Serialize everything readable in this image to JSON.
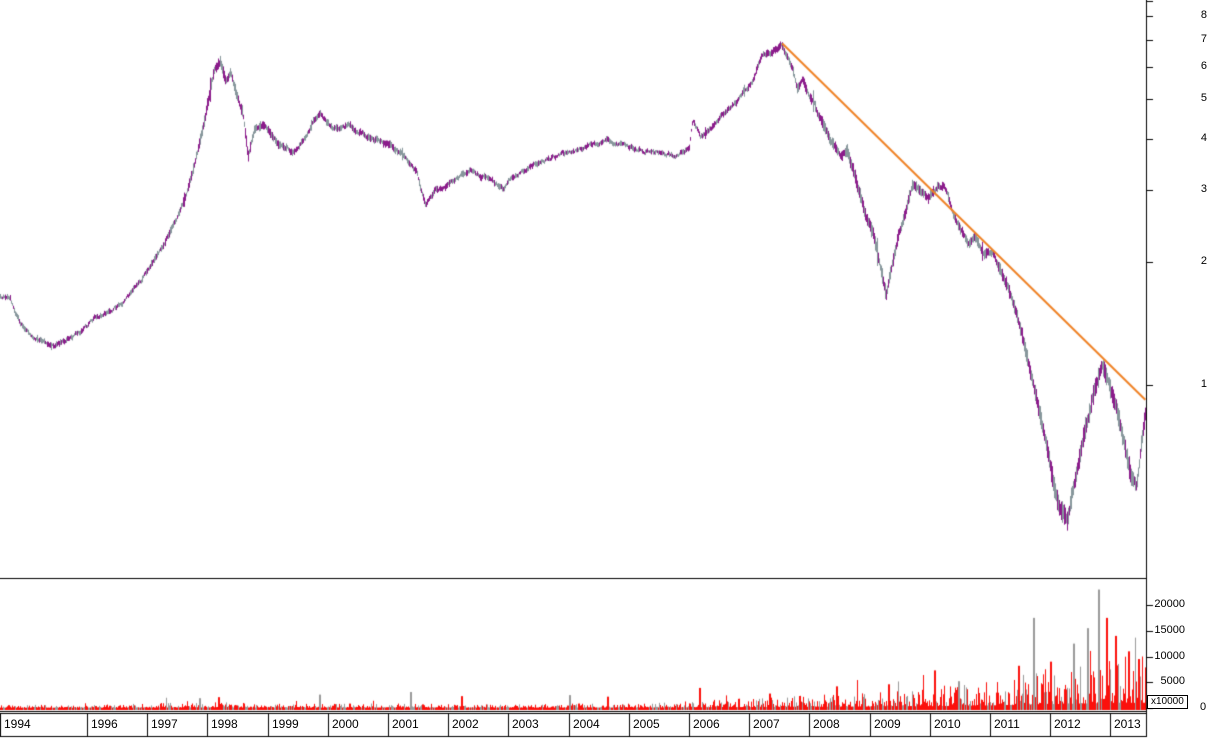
{
  "app": {
    "type": "stock-charting-window"
  },
  "colors": {
    "background": "#ffffff",
    "axis": "#000000",
    "price_gray": "#87979c",
    "price_purple": "#8b1b8b",
    "trendline_orange": "#f08327",
    "volume_red": "#fb100c",
    "volume_gray": "#9a9a9a"
  },
  "price_axis": {
    "ticks": [
      8,
      7,
      6,
      5,
      4,
      3,
      2,
      1
    ],
    "scale": "log"
  },
  "volume_axis": {
    "ticks": [
      20000,
      15000,
      10000,
      5000,
      0
    ],
    "scale_label": "x10000"
  },
  "time_axis": {
    "years": [
      1994,
      1996,
      1997,
      1998,
      1999,
      2000,
      2001,
      2002,
      2003,
      2004,
      2005,
      2006,
      2007,
      2008,
      2009,
      2010,
      2011,
      2012,
      2013
    ]
  },
  "chart_data": [
    {
      "type": "line",
      "name": "price",
      "y_scale": "log",
      "x_range": [
        1994.55,
        2013.58
      ],
      "ylim": [
        0.35,
        8.8
      ],
      "y_ticks": [
        8,
        7,
        6,
        5,
        4,
        3,
        2,
        1
      ],
      "grid": false,
      "legend": "none",
      "points": [
        [
          1994.56,
          1.66
        ],
        [
          1994.72,
          1.62
        ],
        [
          1994.8,
          1.5
        ],
        [
          1994.95,
          1.37
        ],
        [
          1995.1,
          1.3
        ],
        [
          1995.39,
          1.25
        ],
        [
          1995.64,
          1.28
        ],
        [
          1995.89,
          1.34
        ],
        [
          1996.12,
          1.45
        ],
        [
          1996.38,
          1.52
        ],
        [
          1996.63,
          1.62
        ],
        [
          1996.88,
          1.78
        ],
        [
          1997.13,
          2.05
        ],
        [
          1997.3,
          2.28
        ],
        [
          1997.46,
          2.52
        ],
        [
          1997.6,
          2.83
        ],
        [
          1997.74,
          3.3
        ],
        [
          1997.88,
          4.0
        ],
        [
          1997.98,
          4.75
        ],
        [
          1998.12,
          5.95
        ],
        [
          1998.21,
          6.2
        ],
        [
          1998.3,
          5.45
        ],
        [
          1998.38,
          5.75
        ],
        [
          1998.48,
          5.1
        ],
        [
          1998.58,
          4.65
        ],
        [
          1998.67,
          3.6
        ],
        [
          1998.77,
          4.2
        ],
        [
          1998.91,
          4.33
        ],
        [
          1999.07,
          4.1
        ],
        [
          1999.26,
          3.85
        ],
        [
          1999.45,
          3.7
        ],
        [
          1999.6,
          3.95
        ],
        [
          1999.75,
          4.35
        ],
        [
          1999.87,
          4.5
        ],
        [
          2000.08,
          4.2
        ],
        [
          2000.33,
          4.3
        ],
        [
          2000.57,
          4.15
        ],
        [
          2000.83,
          3.98
        ],
        [
          2001.06,
          3.82
        ],
        [
          2001.3,
          3.62
        ],
        [
          2001.48,
          3.3
        ],
        [
          2001.62,
          2.7
        ],
        [
          2001.77,
          2.95
        ],
        [
          2001.93,
          3.08
        ],
        [
          2002.16,
          3.2
        ],
        [
          2002.39,
          3.35
        ],
        [
          2002.66,
          3.22
        ],
        [
          2002.92,
          3.03
        ],
        [
          2003.19,
          3.3
        ],
        [
          2003.45,
          3.5
        ],
        [
          2003.72,
          3.6
        ],
        [
          2004.02,
          3.72
        ],
        [
          2004.32,
          3.86
        ],
        [
          2004.62,
          3.94
        ],
        [
          2004.92,
          3.82
        ],
        [
          2005.21,
          3.76
        ],
        [
          2005.51,
          3.7
        ],
        [
          2005.81,
          3.66
        ],
        [
          2006.0,
          3.82
        ],
        [
          2006.06,
          4.45
        ],
        [
          2006.18,
          4.02
        ],
        [
          2006.31,
          4.16
        ],
        [
          2006.47,
          4.45
        ],
        [
          2006.67,
          4.78
        ],
        [
          2006.87,
          5.1
        ],
        [
          2007.04,
          5.55
        ],
        [
          2007.2,
          6.3
        ],
        [
          2007.37,
          6.55
        ],
        [
          2007.52,
          6.82
        ],
        [
          2007.62,
          6.45
        ],
        [
          2007.72,
          6.0
        ],
        [
          2007.8,
          5.3
        ],
        [
          2007.87,
          5.65
        ],
        [
          2007.97,
          5.15
        ],
        [
          2008.07,
          4.9
        ],
        [
          2008.2,
          4.42
        ],
        [
          2008.36,
          3.98
        ],
        [
          2008.53,
          3.65
        ],
        [
          2008.62,
          3.8
        ],
        [
          2008.8,
          3.05
        ],
        [
          2008.93,
          2.6
        ],
        [
          2009.06,
          2.35
        ],
        [
          2009.16,
          2.0
        ],
        [
          2009.27,
          1.68
        ],
        [
          2009.37,
          2.0
        ],
        [
          2009.48,
          2.35
        ],
        [
          2009.59,
          2.65
        ],
        [
          2009.71,
          3.1
        ],
        [
          2009.84,
          2.96
        ],
        [
          2009.97,
          2.86
        ],
        [
          2010.11,
          3.02
        ],
        [
          2010.24,
          3.08
        ],
        [
          2010.37,
          2.7
        ],
        [
          2010.5,
          2.42
        ],
        [
          2010.64,
          2.2
        ],
        [
          2010.77,
          2.28
        ],
        [
          2010.9,
          2.06
        ],
        [
          2011.03,
          2.1
        ],
        [
          2011.17,
          1.9
        ],
        [
          2011.3,
          1.72
        ],
        [
          2011.43,
          1.5
        ],
        [
          2011.57,
          1.25
        ],
        [
          2011.7,
          1.02
        ],
        [
          2011.81,
          0.86
        ],
        [
          2011.93,
          0.72
        ],
        [
          2012.05,
          0.58
        ],
        [
          2012.16,
          0.5
        ],
        [
          2012.28,
          0.47
        ],
        [
          2012.4,
          0.58
        ],
        [
          2012.51,
          0.7
        ],
        [
          2012.63,
          0.84
        ],
        [
          2012.74,
          0.99
        ],
        [
          2012.86,
          1.1
        ],
        [
          2012.98,
          1.0
        ],
        [
          2013.09,
          0.88
        ],
        [
          2013.21,
          0.73
        ],
        [
          2013.33,
          0.6
        ],
        [
          2013.43,
          0.56
        ],
        [
          2013.51,
          0.72
        ],
        [
          2013.58,
          0.85
        ]
      ],
      "volatility_pct": [
        [
          1994.55,
          2.2
        ],
        [
          1996.5,
          2.4
        ],
        [
          1997.4,
          3.2
        ],
        [
          1998.0,
          5.0
        ],
        [
          1998.6,
          4.5
        ],
        [
          1999.5,
          2.8
        ],
        [
          2001.5,
          3.0
        ],
        [
          2002.5,
          2.6
        ],
        [
          2004.0,
          2.2
        ],
        [
          2005.5,
          2.2
        ],
        [
          2006.5,
          2.6
        ],
        [
          2007.3,
          3.0
        ],
        [
          2007.8,
          4.0
        ],
        [
          2008.5,
          5.0
        ],
        [
          2009.2,
          6.5
        ],
        [
          2009.8,
          4.5
        ],
        [
          2010.5,
          4.0
        ],
        [
          2011.3,
          5.5
        ],
        [
          2011.9,
          8.0
        ],
        [
          2012.4,
          9.0
        ],
        [
          2012.9,
          8.0
        ],
        [
          2013.3,
          9.0
        ],
        [
          2013.58,
          7.0
        ]
      ],
      "trendline": {
        "from": [
          2007.55,
          6.85
        ],
        "to": [
          2013.58,
          0.92
        ],
        "color": "#f08327"
      }
    },
    {
      "type": "bar",
      "name": "volume",
      "unit_label": "x10000",
      "y_ticks": [
        20000,
        15000,
        10000,
        5000,
        0
      ],
      "ylim": [
        0,
        25000
      ],
      "typical_envelope": [
        [
          1994.5,
          450
        ],
        [
          1996.5,
          550
        ],
        [
          1997.5,
          900
        ],
        [
          1998.5,
          850
        ],
        [
          1999.5,
          650
        ],
        [
          2001.0,
          700
        ],
        [
          2003.0,
          600
        ],
        [
          2005.0,
          750
        ],
        [
          2006.0,
          1100
        ],
        [
          2007.0,
          1500
        ],
        [
          2008.0,
          2000
        ],
        [
          2009.0,
          2400
        ],
        [
          2010.0,
          2900
        ],
        [
          2011.0,
          4200
        ],
        [
          2011.8,
          5800
        ],
        [
          2012.4,
          7000
        ],
        [
          2013.0,
          8200
        ],
        [
          2013.58,
          8500
        ]
      ],
      "spikes": [
        [
          1997.88,
          1900,
          "gray"
        ],
        [
          1998.2,
          2100,
          "red"
        ],
        [
          1999.87,
          2600,
          "gray"
        ],
        [
          2001.38,
          3100,
          "gray"
        ],
        [
          2002.23,
          2300,
          "red"
        ],
        [
          2004.02,
          2500,
          "gray"
        ],
        [
          2004.65,
          2200,
          "red"
        ],
        [
          2006.18,
          3900,
          "red"
        ],
        [
          2007.35,
          2800,
          "red"
        ],
        [
          2008.46,
          4200,
          "red"
        ],
        [
          2009.33,
          4600,
          "red"
        ],
        [
          2010.08,
          7300,
          "red"
        ],
        [
          2010.49,
          5200,
          "gray"
        ],
        [
          2011.48,
          8200,
          "red"
        ],
        [
          2011.73,
          17500,
          "gray"
        ],
        [
          2012.02,
          9000,
          "red"
        ],
        [
          2012.4,
          12500,
          "gray"
        ],
        [
          2012.63,
          15500,
          "gray"
        ],
        [
          2012.81,
          23000,
          "gray"
        ],
        [
          2012.94,
          17500,
          "red"
        ],
        [
          2013.09,
          14000,
          "red"
        ],
        [
          2013.31,
          11000,
          "red"
        ],
        [
          2013.48,
          9500,
          "red"
        ]
      ]
    }
  ]
}
